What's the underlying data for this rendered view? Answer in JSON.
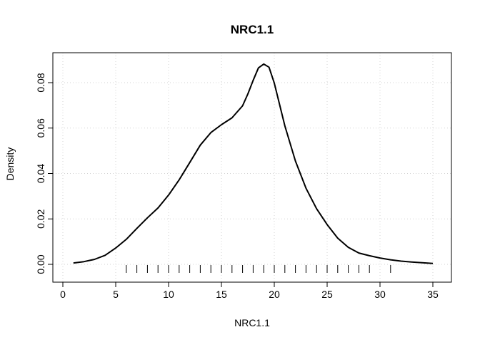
{
  "chart_data": {
    "type": "line",
    "title": "NRC1.1",
    "xlabel": "NRC1.1",
    "ylabel": "Density",
    "xlim": [
      0,
      36
    ],
    "ylim": [
      0,
      0.09
    ],
    "grid": true,
    "x_ticks": [
      0,
      5,
      10,
      15,
      20,
      25,
      30,
      35
    ],
    "x_tick_labels": [
      "0",
      "5",
      "10",
      "15",
      "20",
      "25",
      "30",
      "35"
    ],
    "y_ticks": [
      0.0,
      0.02,
      0.04,
      0.06,
      0.08
    ],
    "y_tick_labels": [
      "0.00",
      "0.02",
      "0.04",
      "0.06",
      "0.08"
    ],
    "series": [
      {
        "x": [
          1,
          2,
          3,
          4,
          5,
          6,
          7,
          8,
          9,
          10,
          11,
          12,
          13,
          14,
          15,
          16,
          17,
          17.5,
          18,
          18.5,
          19,
          19.5,
          20,
          21,
          22,
          23,
          24,
          25,
          26,
          27,
          28,
          29,
          30,
          31,
          32,
          33,
          34,
          35
        ],
        "y": [
          0.0006,
          0.0012,
          0.0022,
          0.004,
          0.0072,
          0.011,
          0.0158,
          0.0205,
          0.0248,
          0.0305,
          0.0372,
          0.0448,
          0.0525,
          0.058,
          0.0615,
          0.0645,
          0.0698,
          0.075,
          0.081,
          0.0865,
          0.0882,
          0.0868,
          0.0798,
          0.061,
          0.0455,
          0.0335,
          0.0245,
          0.0175,
          0.0115,
          0.0075,
          0.005,
          0.0038,
          0.0028,
          0.002,
          0.0014,
          0.001,
          0.0007,
          0.0004
        ]
      }
    ],
    "rug": [
      6,
      7,
      8,
      9,
      10,
      11,
      12,
      13,
      14,
      15,
      16,
      17,
      18,
      19,
      20,
      21,
      22,
      23,
      24,
      25,
      26,
      27,
      28,
      29,
      31
    ]
  }
}
